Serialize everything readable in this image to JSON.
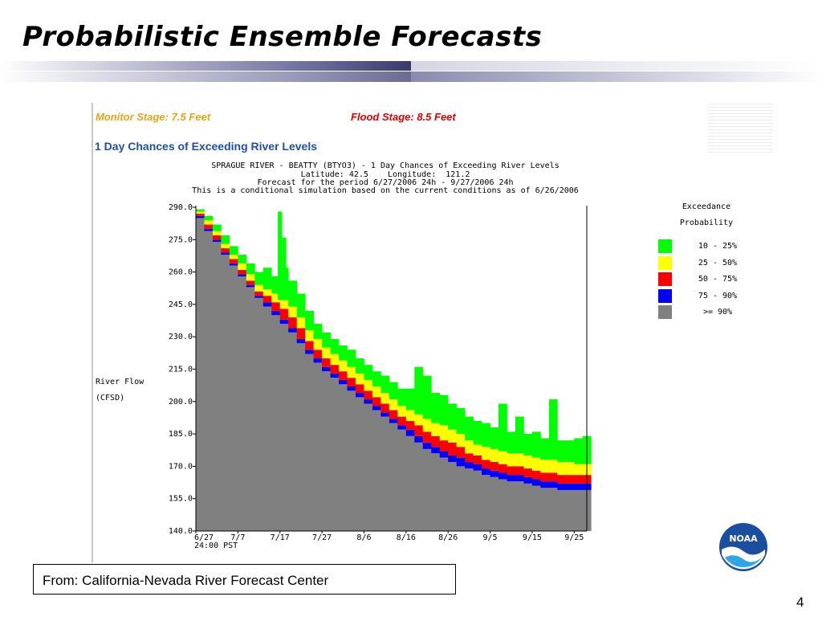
{
  "slide": {
    "title": "Probabilistic Ensemble Forecasts",
    "page_number": "4",
    "source": "From: California-Nevada River Forecast Center"
  },
  "figure": {
    "monitor_stage": "Monitor Stage: 7.5 Feet",
    "flood_stage": "Flood Stage: 8.5 Feet",
    "heading": "1 Day Chances of Exceeding River Levels",
    "info": [
      "SPRAGUE RIVER - BEATTY (BTYO3) - 1 Day Chances of Exceeding River Levels",
      "Latitude: 42.5    Longitude:  121.2",
      "Forecast for the period 6/27/2006 24h - 9/27/2006 24h",
      "This is a conditional simulation based on the current conditions as of 6/26/2006"
    ]
  },
  "logo": {
    "text": "NOAA",
    "icon": "noaa-logo-icon"
  },
  "colors": {
    "title_bar_dark": "#3a3a6c",
    "monitor": "#e8a317",
    "flood": "#e00000",
    "heading": "#1f4fa8"
  },
  "chart_data": {
    "type": "area",
    "ylabel_lines": [
      "River Flow",
      "(CFSD)"
    ],
    "x_tick_labels": [
      "6/27",
      "7/7",
      "7/17",
      "7/27",
      "8/6",
      "8/16",
      "8/26",
      "9/5",
      "9/15",
      "9/25"
    ],
    "x_tick_days": [
      0,
      10,
      20,
      30,
      40,
      50,
      60,
      70,
      80,
      90
    ],
    "x_sublabel": "24:00 PST",
    "x_range_days": [
      0,
      93
    ],
    "y_ticks": [
      140.0,
      155.0,
      170.0,
      185.0,
      200.0,
      215.0,
      230.0,
      245.0,
      260.0,
      275.0,
      290.0
    ],
    "y_tick_labels": [
      "140.0",
      "155.0",
      "170.0",
      "185.0",
      "200.0",
      "215.0",
      "230.0",
      "245.0",
      "260.0",
      "275.0",
      "290.0"
    ],
    "ylim": [
      140,
      290
    ],
    "grid": false,
    "legend": {
      "title_lines": [
        "Exceedance",
        "Probability"
      ],
      "position": "right",
      "entries": [
        {
          "label": "10 - 25%",
          "color": "#00ff00"
        },
        {
          "label": "25 - 50%",
          "color": "#ffff00"
        },
        {
          "label": "50 - 75%",
          "color": "#ff0000"
        },
        {
          "label": "75 - 90%",
          "color": "#0000ff"
        },
        {
          "label": ">= 90%",
          "color": "#808080"
        }
      ]
    },
    "series_order": [
      "gte_90",
      "p75_90",
      "p50_75",
      "p25_50",
      "p10_25"
    ],
    "series_colors": {
      "gte_90": "#808080",
      "p75_90": "#0000ff",
      "p50_75": "#ff0000",
      "p25_50": "#ffff00",
      "p10_25": "#00ff00"
    },
    "days": [
      0,
      2,
      4,
      6,
      8,
      10,
      12,
      14,
      16,
      18,
      20,
      22,
      24,
      26,
      28,
      30,
      32,
      34,
      36,
      38,
      40,
      42,
      44,
      46,
      48,
      50,
      52,
      54,
      56,
      58,
      60,
      62,
      64,
      66,
      68,
      70,
      72,
      74,
      76,
      78,
      80,
      82,
      84,
      86,
      88,
      90,
      92
    ],
    "gte_90": [
      285,
      279,
      274,
      268,
      263,
      258,
      253,
      248,
      244,
      240,
      236,
      232,
      227,
      222,
      218,
      214,
      211,
      208,
      205,
      202,
      199,
      196,
      193,
      190,
      187,
      184,
      181,
      178,
      176,
      174,
      172,
      170,
      169,
      168,
      166,
      165,
      164,
      163,
      163,
      162,
      161,
      160,
      160,
      159,
      159,
      159,
      159
    ],
    "p75_90": [
      286,
      280,
      275,
      269,
      264,
      259,
      254,
      249,
      246,
      242,
      238,
      234,
      229,
      224,
      220,
      216,
      213,
      210,
      207,
      204,
      201,
      198,
      195,
      192,
      189,
      187,
      184,
      181,
      179,
      177,
      175,
      174,
      172,
      171,
      169,
      168,
      167,
      166,
      166,
      165,
      164,
      163,
      163,
      162,
      162,
      162,
      162
    ],
    "p50_75": [
      287,
      282,
      277,
      271,
      266,
      261,
      256,
      251,
      249,
      246,
      243,
      239,
      234,
      228,
      224,
      220,
      217,
      214,
      211,
      208,
      205,
      202,
      199,
      196,
      193,
      191,
      189,
      186,
      184,
      182,
      181,
      179,
      176,
      175,
      173,
      172,
      171,
      170,
      170,
      169,
      168,
      167,
      167,
      166,
      166,
      166,
      166
    ],
    "p25_50": [
      288,
      284,
      279,
      273,
      268,
      264,
      259,
      254,
      252,
      250,
      247,
      244,
      239,
      233,
      229,
      225,
      222,
      219,
      216,
      213,
      210,
      207,
      204,
      201,
      198,
      196,
      194,
      192,
      190,
      189,
      187,
      185,
      182,
      180,
      179,
      178,
      177,
      176,
      176,
      175,
      174,
      173,
      173,
      172,
      172,
      171,
      171
    ],
    "p10_25": [
      289,
      286,
      282,
      277,
      272,
      268,
      264,
      260,
      262,
      258,
      262,
      256,
      250,
      242,
      236,
      232,
      229,
      226,
      224,
      220,
      217,
      214,
      212,
      209,
      206,
      206,
      216,
      212,
      204,
      203,
      199,
      197,
      193,
      191,
      190,
      188,
      199,
      186,
      193,
      185,
      186,
      183,
      201,
      182,
      182,
      183,
      184
    ],
    "spikes": [
      {
        "day": 19.5,
        "p10_25": 288
      },
      {
        "day": 20.5,
        "p10_25": 276
      }
    ]
  }
}
